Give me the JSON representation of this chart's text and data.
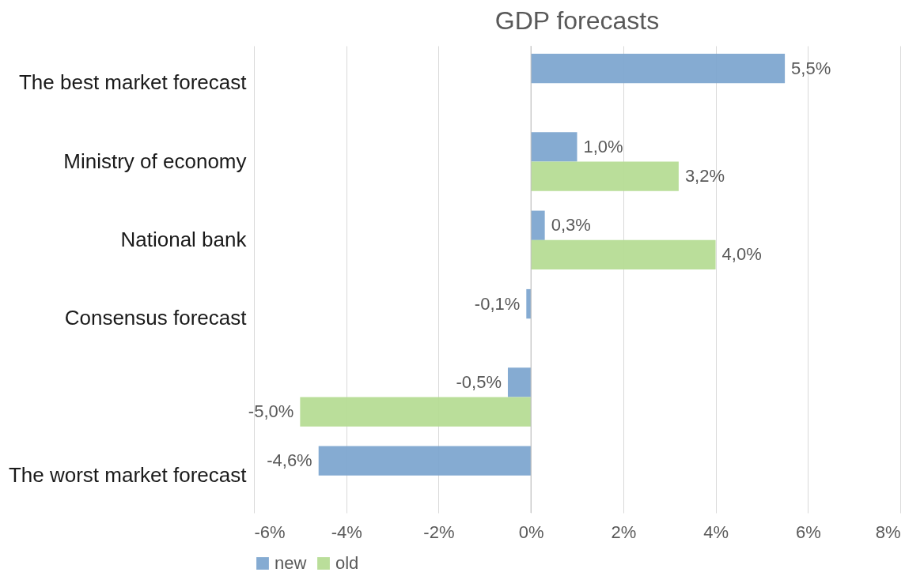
{
  "chart_data": {
    "type": "bar",
    "orientation": "horizontal",
    "title": "GDP forecasts",
    "categories": [
      "The best market forecast",
      "Ministry of economy",
      "National bank",
      "Consensus forecast",
      null,
      "The worst market forecast"
    ],
    "series": [
      {
        "name": "new",
        "color": "#7ea6d0",
        "values": [
          5.5,
          1.0,
          0.3,
          -0.1,
          -0.5,
          -4.6
        ],
        "value_labels": [
          "5,5%",
          "1,0%",
          "0,3%",
          "-0,1%",
          "-0,5%",
          "-4,6%"
        ]
      },
      {
        "name": "old",
        "color": "#b6dc95",
        "values": [
          null,
          3.2,
          4.0,
          null,
          -5.0,
          null
        ],
        "value_labels": [
          null,
          "3,2%",
          "4,0%",
          null,
          "-5,0%",
          null
        ]
      }
    ],
    "xlim": [
      -6,
      8
    ],
    "xticks": [
      {
        "value": -6,
        "label": "-6%"
      },
      {
        "value": -4,
        "label": "-4%"
      },
      {
        "value": -2,
        "label": "-2%"
      },
      {
        "value": 0,
        "label": "0%"
      },
      {
        "value": 2,
        "label": "2%"
      },
      {
        "value": 4,
        "label": "4%"
      },
      {
        "value": 6,
        "label": "6%"
      },
      {
        "value": 8,
        "label": "8%"
      }
    ],
    "grid": "x",
    "legend": "bottom"
  }
}
